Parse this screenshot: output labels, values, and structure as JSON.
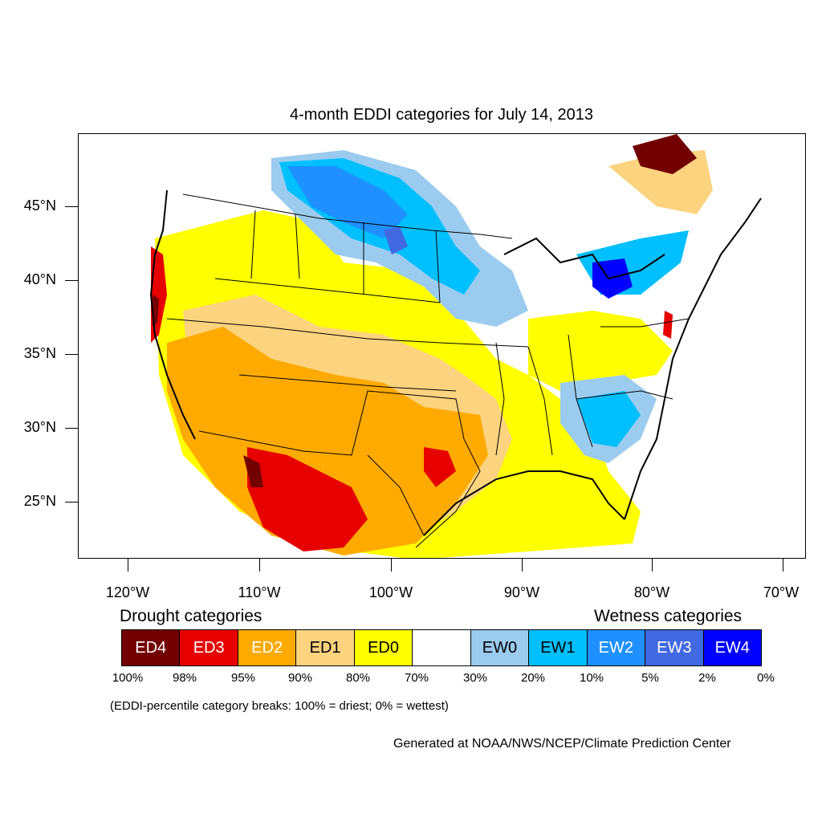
{
  "title": "4-month EDDI categories for July 14, 2013",
  "lat_labels": [
    "45°N",
    "40°N",
    "35°N",
    "30°N",
    "25°N"
  ],
  "lon_labels": [
    "120°W",
    "110°W",
    "100°W",
    "90°W",
    "80°W",
    "70°W"
  ],
  "legend": {
    "drought_heading": "Drought categories",
    "wetness_heading": "Wetness categories",
    "categories": [
      {
        "label": "ED4",
        "color": "#730000",
        "text_color": "#ffffff"
      },
      {
        "label": "ED3",
        "color": "#e60000",
        "text_color": "#ffffff"
      },
      {
        "label": "ED2",
        "color": "#ffaa00",
        "text_color": "#ffffff"
      },
      {
        "label": "ED1",
        "color": "#fcd37f",
        "text_color": "#000000"
      },
      {
        "label": "ED0",
        "color": "#ffff00",
        "text_color": "#000000"
      },
      {
        "label": "",
        "color": "#ffffff",
        "text_color": "#000000"
      },
      {
        "label": "EW0",
        "color": "#9bcbef",
        "text_color": "#000000"
      },
      {
        "label": "EW1",
        "color": "#00bfff",
        "text_color": "#000000"
      },
      {
        "label": "EW2",
        "color": "#1e90ff",
        "text_color": "#ffffff"
      },
      {
        "label": "EW3",
        "color": "#4169e1",
        "text_color": "#ffffff"
      },
      {
        "label": "EW4",
        "color": "#0000ff",
        "text_color": "#ffffff"
      }
    ],
    "breaks": [
      "100%",
      "98%",
      "95%",
      "90%",
      "80%",
      "70%",
      "30%",
      "20%",
      "10%",
      "5%",
      "2%",
      "0%"
    ]
  },
  "breaks_note": "(EDDI-percentile category breaks: 100% = driest; 0% = wettest)",
  "credit": "Generated at NOAA/NWS/NCEP/Climate Prediction Center"
}
